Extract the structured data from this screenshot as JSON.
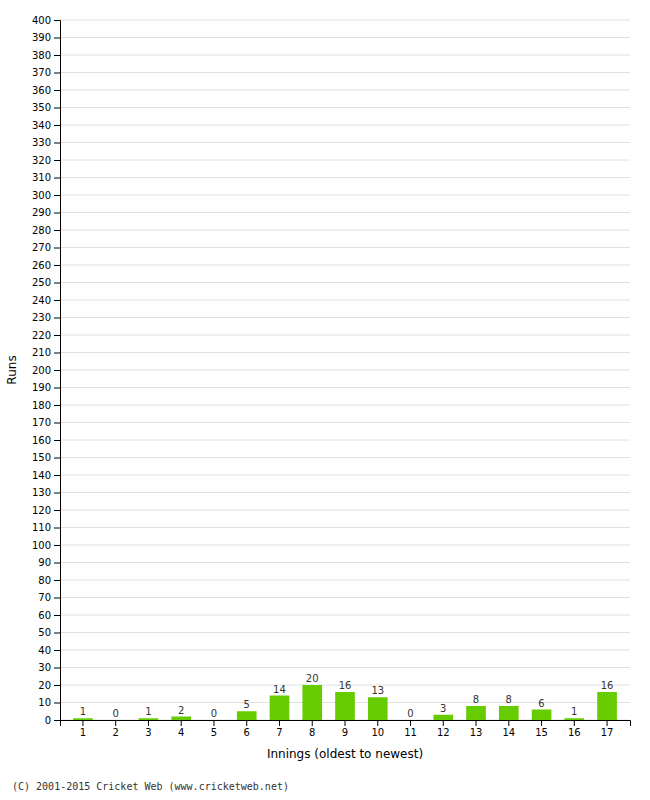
{
  "chart_data": {
    "type": "bar",
    "xlabel": "Innings (oldest to newest)",
    "ylabel": "Runs",
    "categories": [
      "1",
      "2",
      "3",
      "4",
      "5",
      "6",
      "7",
      "8",
      "9",
      "10",
      "11",
      "12",
      "13",
      "14",
      "15",
      "16",
      "17"
    ],
    "values": [
      1,
      0,
      1,
      2,
      0,
      5,
      14,
      20,
      16,
      13,
      0,
      3,
      8,
      8,
      6,
      1,
      16
    ],
    "color": "#66cc00",
    "ylim": [
      0,
      400
    ],
    "yticks": [
      0,
      10,
      20,
      30,
      40,
      50,
      60,
      70,
      80,
      90,
      100,
      110,
      120,
      130,
      140,
      150,
      160,
      170,
      180,
      190,
      200,
      210,
      220,
      230,
      240,
      250,
      260,
      270,
      280,
      290,
      300,
      310,
      320,
      330,
      340,
      350,
      360,
      370,
      380,
      390,
      400
    ],
    "grid": true,
    "data_labels": true,
    "annotations": [
      "(C) 2001-2015 Cricket Web (www.cricketweb.net)"
    ]
  }
}
